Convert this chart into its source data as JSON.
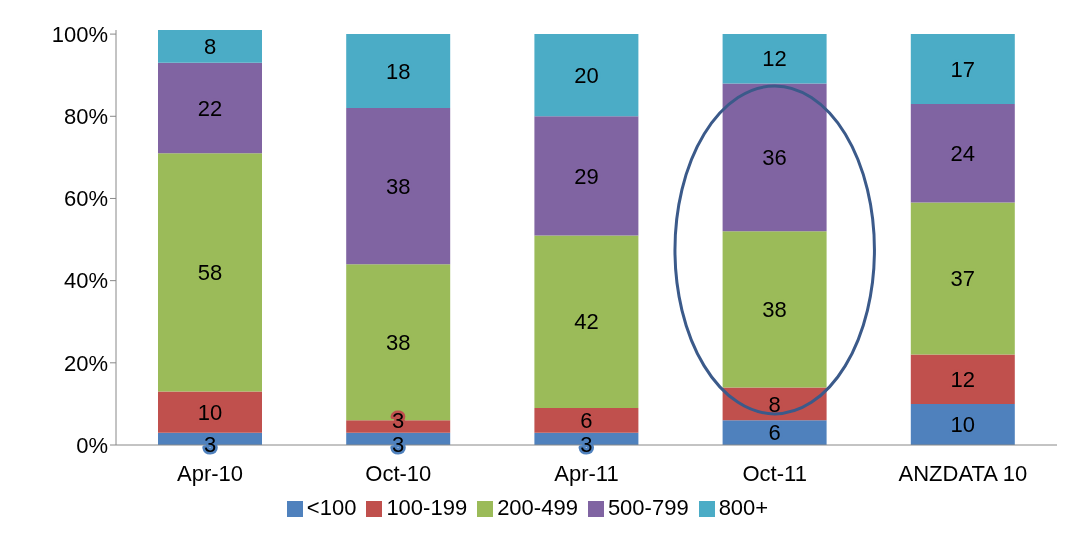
{
  "chart_data": {
    "type": "bar",
    "stacked": true,
    "categories": [
      "Apr-10",
      "Oct-10",
      "Apr-11",
      "Oct-11",
      "ANZDATA 10"
    ],
    "series": [
      {
        "name": "<100",
        "color": "#4f81bd",
        "values": [
          3,
          3,
          3,
          6,
          10
        ]
      },
      {
        "name": "100-199",
        "color": "#c0504d",
        "values": [
          10,
          3,
          6,
          8,
          12
        ]
      },
      {
        "name": "200-499",
        "color": "#9bbb59",
        "values": [
          58,
          38,
          42,
          38,
          37
        ]
      },
      {
        "name": "500-799",
        "color": "#8064a2",
        "values": [
          22,
          38,
          29,
          36,
          24
        ]
      },
      {
        "name": "800+",
        "color": "#4bacc6",
        "values": [
          8,
          18,
          20,
          12,
          17
        ]
      }
    ],
    "ylim": [
      0,
      101
    ],
    "yticks": [
      {
        "value": 0,
        "label": "0%"
      },
      {
        "value": 20,
        "label": "20%"
      },
      {
        "value": 40,
        "label": "40%"
      },
      {
        "value": 60,
        "label": "60%"
      },
      {
        "value": 80,
        "label": "80%"
      },
      {
        "value": 100,
        "label": "100%"
      }
    ],
    "grid": false,
    "legend": "bottom",
    "data_labels": true
  }
}
